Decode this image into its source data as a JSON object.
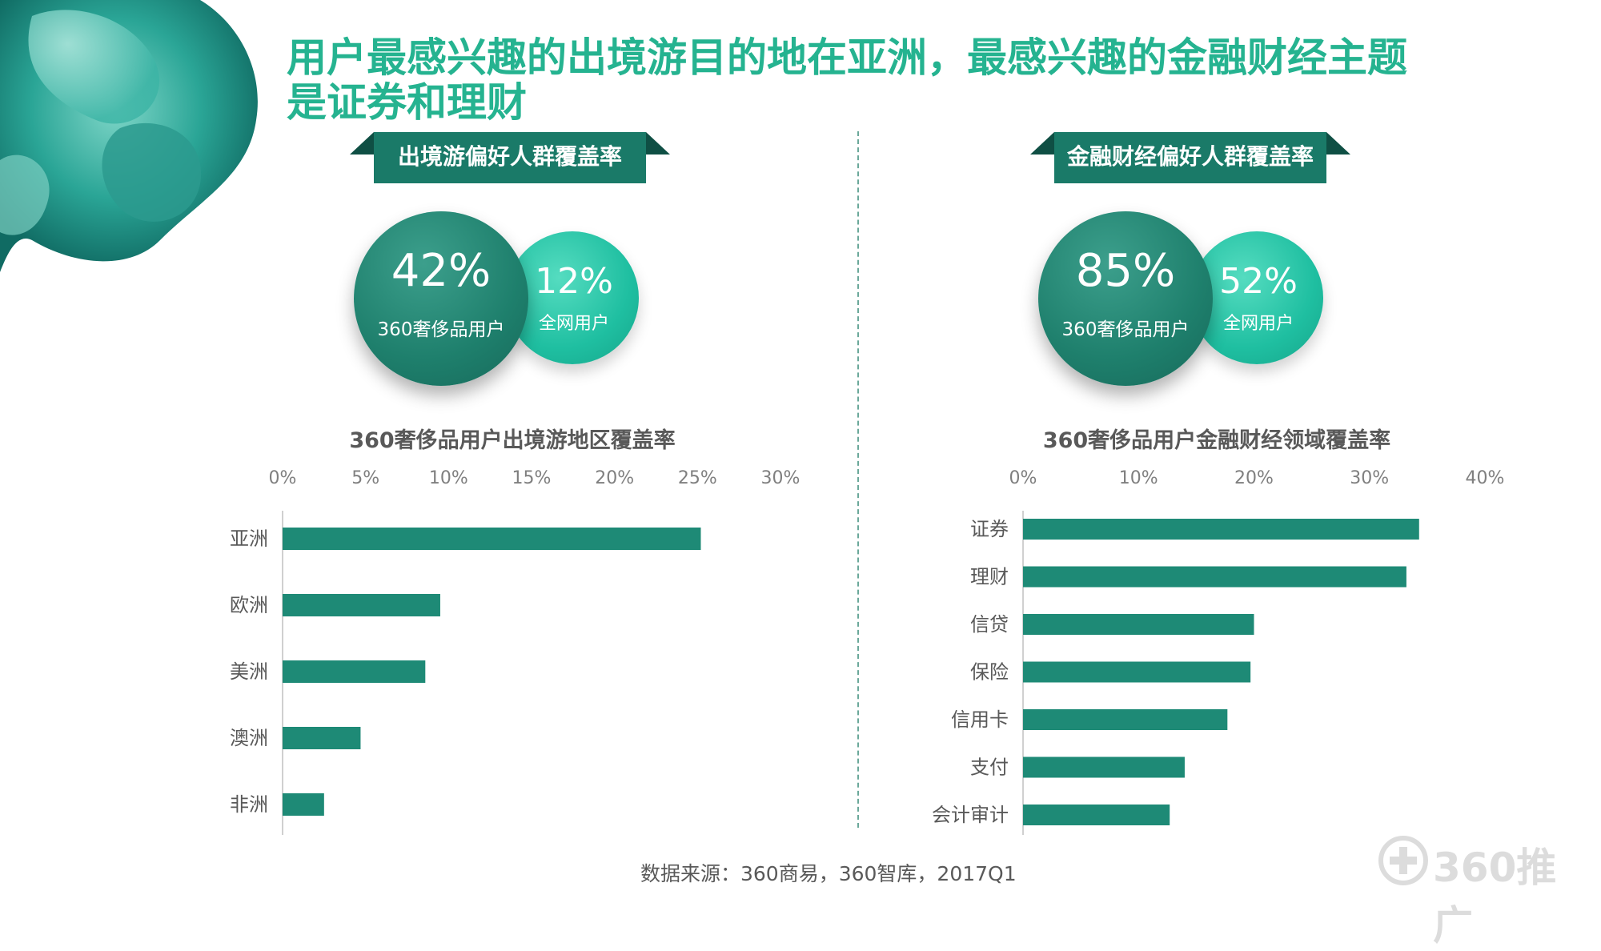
{
  "title": "用户最感兴趣的出境游目的地在亚洲，最感兴趣的金融财经主题是证券和理财",
  "left_panel": {
    "ribbon_label": "出境游偏好人群覆盖率",
    "big_pct": "42%",
    "big_label": "360奢侈品用户",
    "small_pct": "12%",
    "small_label": "全网用户",
    "chart_title": "360奢侈品用户出境游地区覆盖率"
  },
  "right_panel": {
    "ribbon_label": "金融财经偏好人群覆盖率",
    "big_pct": "85%",
    "big_label": "360奢侈品用户",
    "small_pct": "52%",
    "small_label": "全网用户",
    "chart_title": "360奢侈品用户金融财经领域覆盖率"
  },
  "chart_data": [
    {
      "type": "bar",
      "orientation": "horizontal",
      "title": "360奢侈品用户出境游地区覆盖率",
      "categories": [
        "亚洲",
        "欧洲",
        "美洲",
        "澳洲",
        "非洲"
      ],
      "values": [
        25.2,
        9.5,
        8.6,
        4.7,
        2.5
      ],
      "xlim": [
        0,
        30
      ],
      "ticks": [
        "0%",
        "5%",
        "10%",
        "15%",
        "20%",
        "25%",
        "30%"
      ],
      "tick_values": [
        0,
        5,
        10,
        15,
        20,
        25,
        30
      ],
      "color": "#1e8a76"
    },
    {
      "type": "bar",
      "orientation": "horizontal",
      "title": "360奢侈品用户金融财经领域覆盖率",
      "categories": [
        "证券",
        "理财",
        "信贷",
        "保险",
        "信用卡",
        "支付",
        "会计审计"
      ],
      "values": [
        34.3,
        33.2,
        20.0,
        19.7,
        17.7,
        14.0,
        12.7
      ],
      "xlim": [
        0,
        40
      ],
      "ticks": [
        "0%",
        "10%",
        "20%",
        "30%",
        "40%"
      ],
      "tick_values": [
        0,
        10,
        20,
        30,
        40
      ],
      "color": "#1e8a76"
    }
  ],
  "source": "数据来源：360商易，360智库，2017Q1",
  "logo": {
    "text": "360推广",
    "icon": "plus-circle-icon"
  },
  "colors": {
    "title": "#25b390",
    "ribbon": "#1a7a68",
    "ribbon_fold": "#0f4f44",
    "bar": "#1e8a76"
  }
}
